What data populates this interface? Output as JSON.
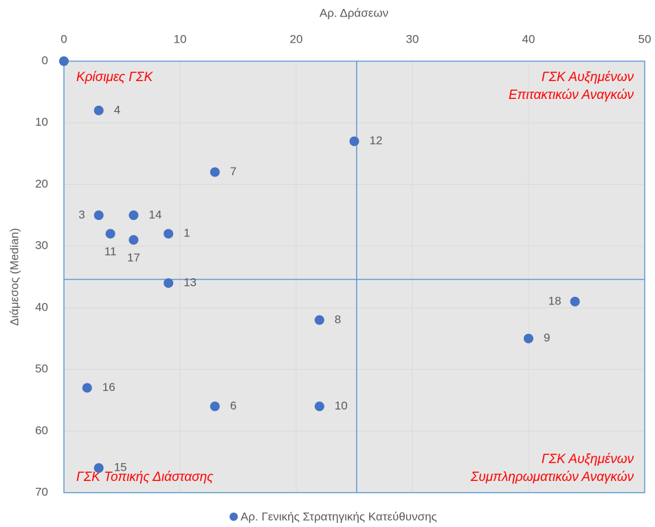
{
  "chart_data": {
    "type": "scatter",
    "x_label": "Αρ. Δράσεων",
    "y_label": "Διάμεσος (Median)",
    "series": [
      {
        "name": "Αρ. Γενικής Στρατηγικής Κατεύθυνσης",
        "color": "#4472c4",
        "x": [
          0,
          3,
          25,
          13,
          3,
          6,
          9,
          4,
          6,
          9,
          44,
          22,
          40,
          2,
          13,
          22,
          3
        ],
        "values": [
          0,
          8,
          13,
          18,
          25,
          25,
          28,
          28,
          29,
          36,
          39,
          42,
          45,
          53,
          56,
          56,
          66
        ],
        "point_labels": [
          null,
          "4",
          "12",
          "7",
          "3",
          "14",
          "1",
          "11",
          "17",
          "13",
          "18",
          "8",
          "9",
          "16",
          "6",
          "10",
          "15"
        ],
        "label_positions": [
          "right",
          "right",
          "right",
          "right",
          "left",
          "right",
          "right",
          "below",
          "below",
          "right",
          "left",
          "right",
          "right",
          "right",
          "right",
          "right",
          "right"
        ]
      }
    ],
    "xlim": [
      0,
      50
    ],
    "xticks": [
      0,
      10,
      20,
      30,
      40,
      50
    ],
    "ylim": [
      0,
      70
    ],
    "yticks": [
      0,
      10,
      20,
      30,
      40,
      50,
      60,
      70
    ],
    "y_reversed": true,
    "x_axis_position": "top",
    "grid": true,
    "legend": "bottom",
    "quadrant_lines": {
      "x": 25.2,
      "y": 35.4,
      "color": "#5b9bd5"
    },
    "quadrant_labels": [
      {
        "lines": [
          "Κρίσιμες ΓΣΚ"
        ],
        "corner": "top-left"
      },
      {
        "lines": [
          "ΓΣΚ Αυξημένων",
          "Επιτακτικών Αναγκών"
        ],
        "corner": "top-right"
      },
      {
        "lines": [
          "ΓΣΚ Τοπικής Διάστασης"
        ],
        "corner": "bottom-left"
      },
      {
        "lines": [
          "ΓΣΚ Αυξημένων",
          "Συμπληρωματικών Αναγκών"
        ],
        "corner": "bottom-right"
      }
    ],
    "quadrant_label_color": "#ff0000"
  }
}
